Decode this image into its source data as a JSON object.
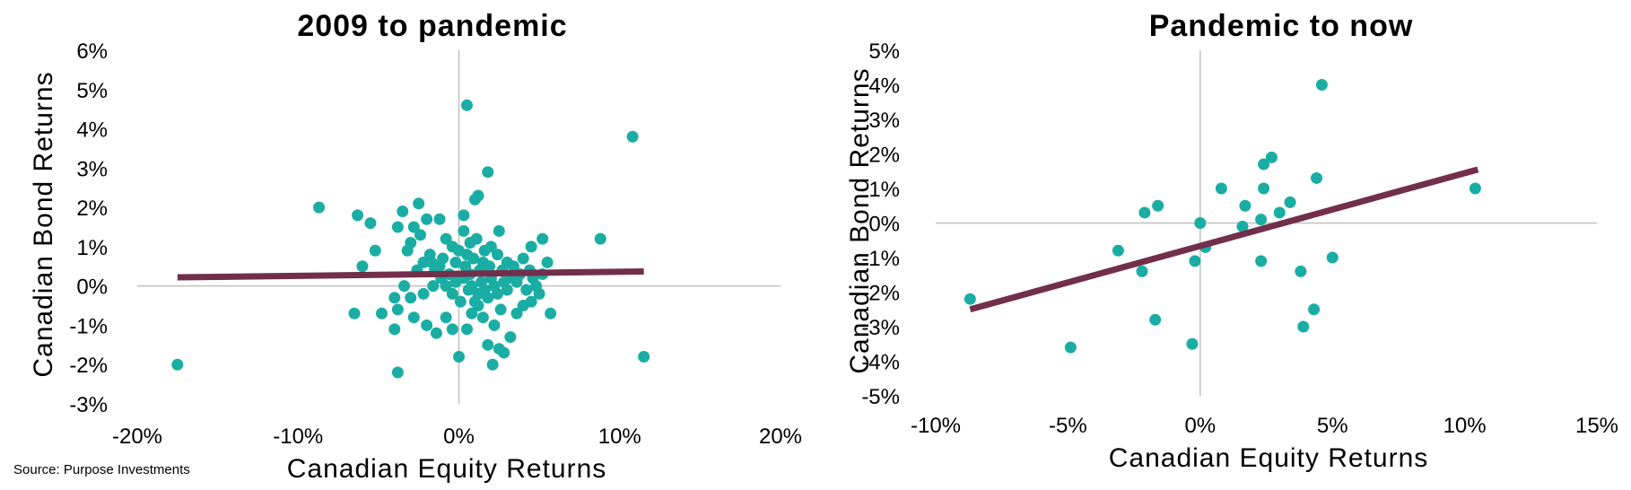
{
  "source_note": "Source: Purpose Investments",
  "colors": {
    "points": "#1aada3",
    "trendline": "#722f4b",
    "zero_line": "#c0c0c0"
  },
  "chart_data": [
    {
      "type": "scatter",
      "title": "2009 to pandemic",
      "xlabel": "Canadian Equity Returns",
      "ylabel": "Canadian Bond Returns",
      "xlim": [
        -0.2,
        0.2
      ],
      "ylim": [
        -0.03,
        0.06
      ],
      "xticks": [
        -0.2,
        -0.1,
        0,
        0.1,
        0.2
      ],
      "xtick_labels": [
        "-20%",
        "-10%",
        "0%",
        "10%",
        "20%"
      ],
      "yticks": [
        -0.03,
        -0.02,
        -0.01,
        0,
        0.01,
        0.02,
        0.03,
        0.04,
        0.05,
        0.06
      ],
      "ytick_labels": [
        "-3%",
        "-2%",
        "-1%",
        "0%",
        "1%",
        "2%",
        "3%",
        "4%",
        "5%",
        "6%"
      ],
      "trendline": {
        "x": [
          -0.175,
          0.115
        ],
        "y": [
          0.0022,
          0.0037
        ]
      },
      "points": [
        [
          -0.175,
          -0.02
        ],
        [
          -0.087,
          0.02
        ],
        [
          0.005,
          0.046
        ],
        [
          0.108,
          0.038
        ],
        [
          0.115,
          -0.018
        ],
        [
          0.088,
          0.012
        ],
        [
          -0.012,
          0.017
        ],
        [
          -0.028,
          0.015
        ],
        [
          0.025,
          0.014
        ],
        [
          -0.035,
          0.019
        ],
        [
          0.003,
          0.018
        ],
        [
          0.018,
          0.029
        ],
        [
          -0.063,
          0.018
        ],
        [
          -0.055,
          0.016
        ],
        [
          -0.052,
          0.009
        ],
        [
          -0.06,
          0.005
        ],
        [
          -0.025,
          0.021
        ],
        [
          -0.02,
          0.017
        ],
        [
          -0.038,
          0.015
        ],
        [
          -0.03,
          0.011
        ],
        [
          -0.008,
          0.012
        ],
        [
          -0.004,
          0.01
        ],
        [
          0.0,
          0.009
        ],
        [
          0.005,
          0.008
        ],
        [
          0.012,
          0.023
        ],
        [
          0.01,
          0.022
        ],
        [
          -0.018,
          0.008
        ],
        [
          -0.01,
          0.007
        ],
        [
          -0.015,
          0.004
        ],
        [
          0.009,
          0.007
        ],
        [
          0.015,
          0.006
        ],
        [
          0.02,
          0.01
        ],
        [
          0.024,
          0.008
        ],
        [
          0.03,
          0.006
        ],
        [
          0.034,
          0.005
        ],
        [
          0.04,
          0.007
        ],
        [
          0.045,
          0.01
        ],
        [
          0.052,
          0.012
        ],
        [
          0.055,
          0.006
        ],
        [
          0.046,
          0.002
        ],
        [
          0.038,
          0.003
        ],
        [
          0.033,
          0.002
        ],
        [
          0.028,
          0.001
        ],
        [
          0.02,
          0.002
        ],
        [
          0.014,
          0.001
        ],
        [
          0.008,
          0.0
        ],
        [
          0.003,
          0.002
        ],
        [
          -0.002,
          0.001
        ],
        [
          -0.006,
          0.003
        ],
        [
          -0.011,
          0.002
        ],
        [
          -0.016,
          0.0
        ],
        [
          -0.022,
          -0.002
        ],
        [
          -0.03,
          -0.003
        ],
        [
          -0.034,
          0.0
        ],
        [
          -0.04,
          -0.003
        ],
        [
          -0.038,
          -0.006
        ],
        [
          -0.048,
          -0.007
        ],
        [
          -0.065,
          -0.007
        ],
        [
          -0.04,
          -0.011
        ],
        [
          -0.028,
          -0.008
        ],
        [
          -0.02,
          -0.01
        ],
        [
          -0.014,
          -0.012
        ],
        [
          -0.008,
          -0.008
        ],
        [
          -0.004,
          -0.011
        ],
        [
          0.0,
          -0.018
        ],
        [
          0.005,
          -0.011
        ],
        [
          0.008,
          -0.007
        ],
        [
          0.012,
          -0.005
        ],
        [
          0.015,
          -0.008
        ],
        [
          0.018,
          -0.015
        ],
        [
          0.022,
          -0.01
        ],
        [
          0.025,
          -0.016
        ],
        [
          0.028,
          -0.017
        ],
        [
          0.032,
          -0.013
        ],
        [
          0.036,
          -0.007
        ],
        [
          0.04,
          -0.005
        ],
        [
          0.045,
          -0.004
        ],
        [
          0.05,
          -0.002
        ],
        [
          0.057,
          -0.007
        ],
        [
          0.048,
          0.0
        ],
        [
          0.042,
          -0.001
        ],
        [
          0.036,
          0.001
        ],
        [
          0.03,
          -0.001
        ],
        [
          0.024,
          -0.002
        ],
        [
          0.018,
          -0.003
        ],
        [
          0.012,
          -0.002
        ],
        [
          0.006,
          -0.001
        ],
        [
          0.001,
          -0.004
        ],
        [
          -0.004,
          -0.002
        ],
        [
          -0.008,
          0.0
        ],
        [
          -0.012,
          0.005
        ],
        [
          -0.017,
          0.006
        ],
        [
          -0.022,
          0.006
        ],
        [
          -0.026,
          0.004
        ],
        [
          -0.038,
          -0.022
        ],
        [
          0.021,
          -0.02
        ],
        [
          0.003,
          0.014
        ],
        [
          0.007,
          0.011
        ],
        [
          0.011,
          0.012
        ],
        [
          0.016,
          0.009
        ],
        [
          0.019,
          0.005
        ],
        [
          0.027,
          0.004
        ],
        [
          0.044,
          0.004
        ],
        [
          0.052,
          0.003
        ],
        [
          -0.032,
          0.009
        ],
        [
          -0.024,
          0.013
        ],
        [
          0.007,
          0.003
        ],
        [
          0.013,
          0.004
        ],
        [
          0.016,
          -0.001
        ],
        [
          0.022,
          0.0
        ],
        [
          0.004,
          0.005
        ],
        [
          -0.002,
          0.006
        ],
        [
          0.01,
          -0.004
        ],
        [
          0.026,
          -0.006
        ]
      ]
    },
    {
      "type": "scatter",
      "title": "Pandemic to now",
      "xlabel": "Canadian Equity Returns",
      "ylabel": "Canadian Bond Returns",
      "xlim": [
        -0.1,
        0.15
      ],
      "ylim": [
        -0.05,
        0.05
      ],
      "xticks": [
        -0.1,
        -0.05,
        0,
        0.05,
        0.1,
        0.15
      ],
      "xtick_labels": [
        "-10%",
        "-5%",
        "0%",
        "5%",
        "10%",
        "15%"
      ],
      "yticks": [
        -0.05,
        -0.04,
        -0.03,
        -0.02,
        -0.01,
        0,
        0.01,
        0.02,
        0.03,
        0.04,
        0.05
      ],
      "ytick_labels": [
        "-5%",
        "-4%",
        "-3%",
        "-2%",
        "-1%",
        "0%",
        "1%",
        "2%",
        "3%",
        "4%",
        "5%"
      ],
      "trendline": {
        "x": [
          -0.087,
          0.105
        ],
        "y": [
          -0.025,
          0.0155
        ]
      },
      "points": [
        [
          -0.087,
          -0.022
        ],
        [
          -0.049,
          -0.036
        ],
        [
          -0.031,
          -0.008
        ],
        [
          -0.022,
          -0.014
        ],
        [
          -0.021,
          0.003
        ],
        [
          -0.016,
          0.005
        ],
        [
          -0.017,
          -0.028
        ],
        [
          -0.003,
          -0.035
        ],
        [
          -0.002,
          -0.011
        ],
        [
          0.0,
          0.0
        ],
        [
          0.002,
          -0.007
        ],
        [
          0.008,
          0.01
        ],
        [
          0.016,
          -0.001
        ],
        [
          0.017,
          0.005
        ],
        [
          0.023,
          -0.011
        ],
        [
          0.023,
          0.001
        ],
        [
          0.024,
          0.017
        ],
        [
          0.024,
          0.01
        ],
        [
          0.027,
          0.019
        ],
        [
          0.03,
          0.003
        ],
        [
          0.034,
          0.006
        ],
        [
          0.038,
          -0.014
        ],
        [
          0.039,
          -0.03
        ],
        [
          0.043,
          -0.025
        ],
        [
          0.044,
          0.013
        ],
        [
          0.046,
          0.04
        ],
        [
          0.05,
          -0.01
        ],
        [
          0.104,
          0.01
        ]
      ]
    }
  ]
}
